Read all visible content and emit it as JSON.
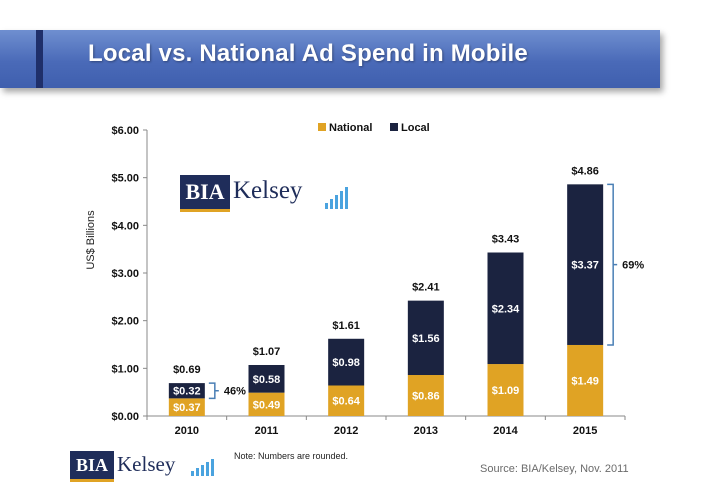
{
  "header": {
    "title": "Local vs. National Ad Spend in Mobile"
  },
  "logo": {
    "box_text": "BIA",
    "word": "Kelsey"
  },
  "footer": {
    "note": "Note: Numbers  are rounded.",
    "source": "Source:  BIA/Kelsey, Nov. 2011"
  },
  "colors": {
    "national": "#E0A324",
    "local": "#1B2340",
    "bracket": "#4a7fb5"
  },
  "chart_data": {
    "type": "bar",
    "stacked": true,
    "categories": [
      "2010",
      "2011",
      "2012",
      "2013",
      "2014",
      "2015"
    ],
    "series": [
      {
        "name": "National",
        "values": [
          0.37,
          0.49,
          0.64,
          0.86,
          1.09,
          1.49
        ],
        "labels": [
          "$0.37",
          "$0.49",
          "$0.64",
          "$0.86",
          "$1.09",
          "$1.49"
        ]
      },
      {
        "name": "Local",
        "values": [
          0.32,
          0.58,
          0.98,
          1.56,
          2.34,
          3.37
        ],
        "labels": [
          "$0.32",
          "$0.58",
          "$0.98",
          "$1.56",
          "$2.34",
          "$3.37"
        ]
      }
    ],
    "totals": [
      0.69,
      1.07,
      1.61,
      2.41,
      3.43,
      4.86
    ],
    "total_labels": [
      "$0.69",
      "$1.07",
      "$1.61",
      "$2.41",
      "$3.43",
      "$4.86"
    ],
    "ylim": [
      0,
      6
    ],
    "yticks": [
      0,
      1,
      2,
      3,
      4,
      5,
      6
    ],
    "ytick_labels": [
      "$0.00",
      "$1.00",
      "$2.00",
      "$3.00",
      "$4.00",
      "$5.00",
      "$6.00"
    ],
    "ylabel": "US$ Billions",
    "xlabel": "",
    "legend": {
      "position": "top-center",
      "entries": [
        "National",
        "Local"
      ]
    },
    "annotations": [
      {
        "text": "46%",
        "category": "2010"
      },
      {
        "text": "69%",
        "category": "2015"
      }
    ]
  }
}
